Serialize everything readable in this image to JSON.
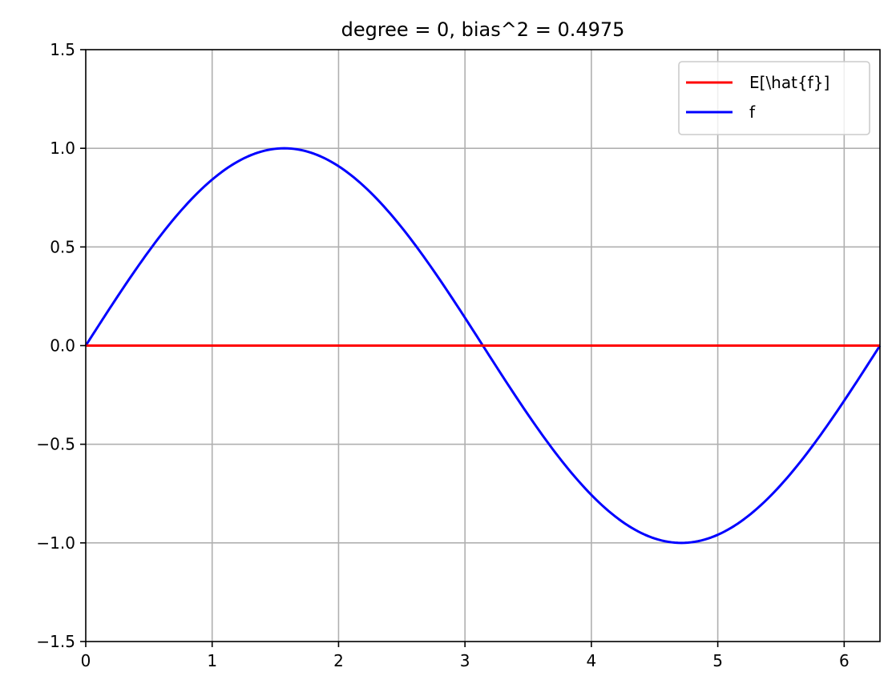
{
  "chart_data": {
    "type": "line",
    "title": "degree = 0, bias^2 = 0.4975",
    "xlabel": "",
    "ylabel": "",
    "xlim": [
      0,
      6.283185307179586
    ],
    "ylim": [
      -1.5,
      1.5
    ],
    "xticks": [
      0,
      1,
      2,
      3,
      4,
      5,
      6
    ],
    "xtick_labels": [
      "0",
      "1",
      "2",
      "3",
      "4",
      "5",
      "6"
    ],
    "yticks": [
      -1.5,
      -1.0,
      -0.5,
      0.0,
      0.5,
      1.0,
      1.5
    ],
    "ytick_labels": [
      "−1.5",
      "−1.0",
      "−0.5",
      "0.0",
      "0.5",
      "1.0",
      "1.5"
    ],
    "grid": true,
    "legend_position": "top-right",
    "series": [
      {
        "name": "E[\\hat{f}]",
        "color": "#ff0000",
        "x": [
          0,
          6.283185307179586
        ],
        "y": [
          0,
          0
        ]
      },
      {
        "name": "f",
        "color": "#0000ff",
        "x": [
          0,
          0.3927,
          0.7854,
          1.1781,
          1.5708,
          1.9635,
          2.3562,
          2.7489,
          3.1416,
          3.5343,
          3.927,
          4.3197,
          4.7124,
          5.1051,
          5.4978,
          5.8905,
          6.2832
        ],
        "y": [
          0,
          0.3827,
          0.7071,
          0.9239,
          1.0,
          0.9239,
          0.7071,
          0.3827,
          0,
          -0.3827,
          -0.7071,
          -0.9239,
          -1.0,
          -0.9239,
          -0.7071,
          -0.3827,
          0
        ]
      }
    ]
  }
}
